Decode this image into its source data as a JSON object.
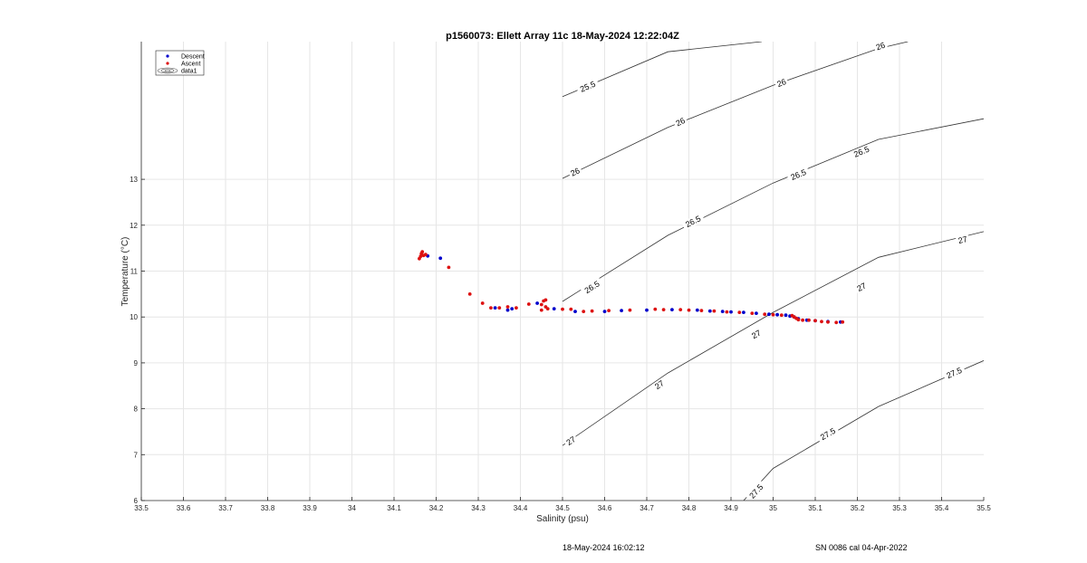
{
  "chart_data": {
    "type": "scatter",
    "title": "p1560073: Ellett Array 11c 18-May-2024 12:22:04Z",
    "xlabel": "Salinity (psu)",
    "ylabel": "Temperature (°C)",
    "xlim": [
      33.5,
      35.5
    ],
    "ylim": [
      6,
      16
    ],
    "x_ticks": [
      "33.5",
      "33.6",
      "33.7",
      "33.8",
      "33.9",
      "34",
      "34.1",
      "34.2",
      "34.3",
      "34.4",
      "34.5",
      "34.6",
      "34.7",
      "34.8",
      "34.9",
      "35",
      "35.1",
      "35.2",
      "35.3",
      "35.4",
      "35.5"
    ],
    "y_ticks": [
      "6",
      "7",
      "8",
      "9",
      "10",
      "11",
      "12",
      "13"
    ],
    "grid": true,
    "legend_position": "top-left",
    "series": [
      {
        "name": "Descent",
        "color": "#0000cc",
        "marker": "dot",
        "points": [
          [
            34.18,
            11.33
          ],
          [
            34.21,
            11.28
          ],
          [
            34.34,
            10.2
          ],
          [
            34.37,
            10.15
          ],
          [
            34.38,
            10.18
          ],
          [
            34.44,
            10.3
          ],
          [
            34.48,
            10.18
          ],
          [
            34.53,
            10.12
          ],
          [
            34.6,
            10.12
          ],
          [
            34.64,
            10.14
          ],
          [
            34.7,
            10.15
          ],
          [
            34.76,
            10.16
          ],
          [
            34.82,
            10.15
          ],
          [
            34.85,
            10.13
          ],
          [
            34.88,
            10.12
          ],
          [
            34.9,
            10.11
          ],
          [
            34.93,
            10.1
          ],
          [
            34.96,
            10.08
          ],
          [
            34.99,
            10.06
          ],
          [
            35.01,
            10.05
          ],
          [
            35.03,
            10.04
          ],
          [
            35.04,
            10.02
          ],
          [
            35.05,
            10.0
          ],
          [
            35.06,
            9.96
          ],
          [
            35.08,
            9.93
          ],
          [
            35.1,
            9.92
          ],
          [
            35.13,
            9.9
          ],
          [
            35.16,
            9.89
          ]
        ]
      },
      {
        "name": "Ascent",
        "color": "#dd1111",
        "marker": "dot",
        "points": [
          [
            34.16,
            11.27
          ],
          [
            34.165,
            11.38
          ],
          [
            34.17,
            11.34
          ],
          [
            34.167,
            11.42
          ],
          [
            34.175,
            11.36
          ],
          [
            34.163,
            11.32
          ],
          [
            34.23,
            11.08
          ],
          [
            34.28,
            10.5
          ],
          [
            34.31,
            10.3
          ],
          [
            34.33,
            10.2
          ],
          [
            34.35,
            10.2
          ],
          [
            34.37,
            10.22
          ],
          [
            34.39,
            10.2
          ],
          [
            34.42,
            10.28
          ],
          [
            34.45,
            10.27
          ],
          [
            34.46,
            10.37
          ],
          [
            34.455,
            10.35
          ],
          [
            34.46,
            10.22
          ],
          [
            34.465,
            10.18
          ],
          [
            34.45,
            10.15
          ],
          [
            34.5,
            10.17
          ],
          [
            34.52,
            10.17
          ],
          [
            34.55,
            10.12
          ],
          [
            34.57,
            10.13
          ],
          [
            34.61,
            10.14
          ],
          [
            34.66,
            10.15
          ],
          [
            34.72,
            10.17
          ],
          [
            34.74,
            10.16
          ],
          [
            34.78,
            10.16
          ],
          [
            34.8,
            10.15
          ],
          [
            34.83,
            10.14
          ],
          [
            34.86,
            10.13
          ],
          [
            34.89,
            10.11
          ],
          [
            34.92,
            10.1
          ],
          [
            34.95,
            10.08
          ],
          [
            34.98,
            10.06
          ],
          [
            35.0,
            10.05
          ],
          [
            35.02,
            10.04
          ],
          [
            35.045,
            10.03
          ],
          [
            35.05,
            10.0
          ],
          [
            35.055,
            9.97
          ],
          [
            35.06,
            9.94
          ],
          [
            35.07,
            9.93
          ],
          [
            35.085,
            9.93
          ],
          [
            35.1,
            9.92
          ],
          [
            35.115,
            9.9
          ],
          [
            35.13,
            9.89
          ],
          [
            35.15,
            9.88
          ],
          [
            35.165,
            9.89
          ]
        ]
      },
      {
        "name": "data1",
        "color": "#000000",
        "marker": "contour"
      }
    ],
    "contours": [
      {
        "level": "25.5",
        "color": "#333333",
        "points": [
          [
            34.5,
            14.8
          ],
          [
            34.75,
            15.78
          ],
          [
            34.973,
            16.0
          ]
        ],
        "labels": [
          [
            34.56,
            15.02
          ]
        ]
      },
      {
        "level": "26",
        "color": "#333333",
        "points": [
          [
            34.5,
            13.02
          ],
          [
            34.75,
            14.13
          ],
          [
            35.0,
            15.05
          ],
          [
            35.25,
            15.85
          ],
          [
            35.32,
            16.0
          ]
        ],
        "labels": [
          [
            34.53,
            13.16
          ],
          [
            34.78,
            14.25
          ],
          [
            35.02,
            15.1
          ],
          [
            35.255,
            15.9
          ]
        ]
      },
      {
        "level": "26.5",
        "color": "#333333",
        "points": [
          [
            34.5,
            10.34
          ],
          [
            34.75,
            11.78
          ],
          [
            35.0,
            12.92
          ],
          [
            35.25,
            13.87
          ],
          [
            35.5,
            14.32
          ]
        ],
        "labels": [
          [
            34.57,
            10.65
          ],
          [
            34.81,
            12.08
          ],
          [
            35.06,
            13.1
          ],
          [
            35.21,
            13.6
          ]
        ]
      },
      {
        "level": "27",
        "color": "#333333",
        "points": [
          [
            34.5,
            7.2
          ],
          [
            34.75,
            8.78
          ],
          [
            35.0,
            10.1
          ],
          [
            35.25,
            11.3
          ],
          [
            35.5,
            11.86
          ]
        ],
        "labels": [
          [
            34.52,
            7.3
          ],
          [
            34.73,
            8.52
          ],
          [
            34.96,
            9.62
          ],
          [
            35.21,
            10.65
          ],
          [
            35.45,
            11.68
          ]
        ]
      },
      {
        "level": "27.5",
        "color": "#333333",
        "points": [
          [
            34.93,
            6.0
          ],
          [
            35.0,
            6.7
          ],
          [
            35.25,
            8.05
          ],
          [
            35.5,
            9.05
          ]
        ],
        "labels": [
          [
            34.96,
            6.2
          ],
          [
            35.13,
            7.45
          ],
          [
            35.43,
            8.78
          ]
        ]
      }
    ]
  },
  "footer": {
    "left": "18-May-2024 16:02:12",
    "right": "SN 0086 cal 04-Apr-2022"
  }
}
